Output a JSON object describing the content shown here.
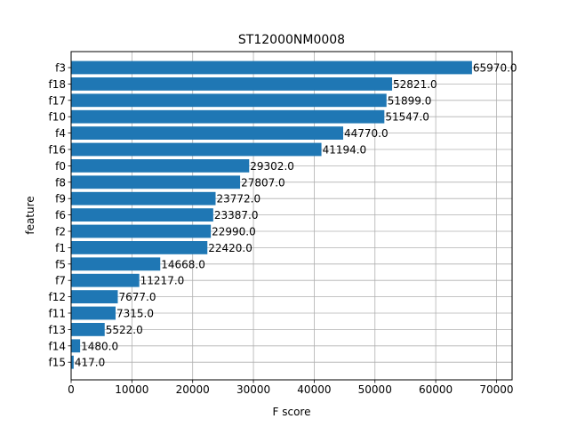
{
  "chart_data": {
    "type": "bar",
    "orientation": "horizontal",
    "title": "ST12000NM0008",
    "xlabel": "F score",
    "ylabel": "feature",
    "xlim": [
      0,
      72567
    ],
    "x_ticks": [
      0,
      10000,
      20000,
      30000,
      40000,
      50000,
      60000,
      70000
    ],
    "grid": true,
    "bar_color": "#1f77b4",
    "categories": [
      "f3",
      "f18",
      "f17",
      "f10",
      "f4",
      "f16",
      "f0",
      "f8",
      "f9",
      "f6",
      "f2",
      "f1",
      "f5",
      "f7",
      "f12",
      "f11",
      "f13",
      "f14",
      "f15"
    ],
    "values": [
      65970,
      52821,
      51899,
      51547,
      44770,
      41194,
      29302,
      27807,
      23772,
      23387,
      22990,
      22420,
      14668,
      11217,
      7677,
      7315,
      5522,
      1480,
      417
    ],
    "value_labels": [
      "65970.0",
      "52821.0",
      "51899.0",
      "51547.0",
      "44770.0",
      "41194.0",
      "29302.0",
      "27807.0",
      "23772.0",
      "23387.0",
      "22990.0",
      "22420.0",
      "14668.0",
      "11217.0",
      "7677.0",
      "7315.0",
      "5522.0",
      "1480.0",
      "417.0"
    ]
  }
}
